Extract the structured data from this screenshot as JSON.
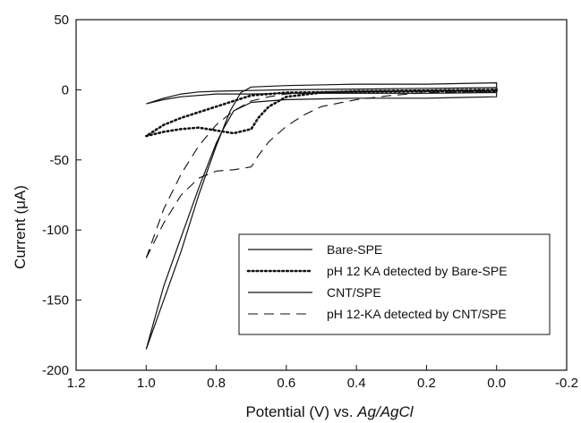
{
  "chart_data": {
    "type": "line",
    "title": "",
    "xlabel": "Potential (V) vs. ",
    "xlabel_italic": "Ag/AgCl",
    "ylabel": "Current (μA)",
    "xlim": [
      1.2,
      -0.2
    ],
    "ylim": [
      -200,
      50
    ],
    "x_reversed": true,
    "x_ticks": [
      "1.2",
      "1.0",
      "0.8",
      "0.6",
      "0.4",
      "0.2",
      "0.0",
      "-0.2"
    ],
    "y_ticks": [
      "50",
      "0",
      "-50",
      "-100",
      "-150",
      "-200"
    ],
    "grid": false,
    "legend_position": "lower-right",
    "series": [
      {
        "name": "Bare-SPE",
        "style": "solid",
        "color": "#111111",
        "x": [
          1.0,
          0.95,
          0.9,
          0.85,
          0.8,
          0.7,
          0.6,
          0.4,
          0.2,
          0.0,
          0.0,
          0.2,
          0.4,
          0.6,
          0.7,
          0.8,
          0.9,
          0.95,
          1.0
        ],
        "y": [
          -10,
          -6,
          -3,
          -1.5,
          -1,
          -0.5,
          0,
          0.5,
          1,
          1.5,
          -2,
          -2.5,
          -2.5,
          -2.5,
          -3,
          -3,
          -5,
          -7,
          -10
        ]
      },
      {
        "name": "pH 12 KA detected by Bare-SPE",
        "style": "dotted",
        "color": "#111111",
        "x": [
          1.0,
          0.95,
          0.9,
          0.85,
          0.8,
          0.75,
          0.7,
          0.68,
          0.65,
          0.6,
          0.5,
          0.4,
          0.2,
          0.0,
          0.0,
          0.2,
          0.4,
          0.6,
          0.7,
          0.75,
          0.8,
          0.85,
          0.9,
          0.95,
          1.0
        ],
        "y": [
          -33,
          -30,
          -28,
          -27,
          -29,
          -31,
          -28,
          -20,
          -12,
          -5,
          -2,
          -1,
          -0.5,
          0,
          -1,
          -1,
          -1.5,
          -2,
          -4,
          -8,
          -12,
          -16,
          -20,
          -25,
          -33
        ]
      },
      {
        "name": "CNT/SPE",
        "style": "solid",
        "color": "#111111",
        "x": [
          1.0,
          0.95,
          0.9,
          0.85,
          0.8,
          0.78,
          0.75,
          0.7,
          0.65,
          0.6,
          0.4,
          0.2,
          0.0,
          0.0,
          0.2,
          0.4,
          0.6,
          0.7,
          0.73,
          0.76,
          0.8,
          0.85,
          0.9,
          0.95,
          1.0
        ],
        "y": [
          -185,
          -140,
          -105,
          -70,
          -38,
          -28,
          -15,
          -9,
          -8,
          -7,
          -6,
          -6,
          -5,
          5,
          4,
          4,
          3,
          2,
          -2,
          -15,
          -40,
          -75,
          -115,
          -150,
          -185
        ]
      },
      {
        "name": "pH 12-KA detected by CNT/SPE",
        "style": "dashed",
        "color": "#111111",
        "x": [
          1.0,
          0.95,
          0.9,
          0.85,
          0.8,
          0.75,
          0.7,
          0.68,
          0.65,
          0.6,
          0.55,
          0.5,
          0.4,
          0.3,
          0.2,
          0.0,
          0.0,
          0.2,
          0.4,
          0.5,
          0.6,
          0.65,
          0.7,
          0.75,
          0.8,
          0.85,
          0.9,
          0.95,
          1.0
        ],
        "y": [
          -120,
          -95,
          -75,
          -63,
          -58,
          -57,
          -55,
          -47,
          -37,
          -26,
          -18,
          -12,
          -7,
          -4,
          -2,
          -1,
          0,
          -0.5,
          -1,
          -1.5,
          -3,
          -5,
          -8,
          -15,
          -25,
          -40,
          -60,
          -85,
          -120
        ]
      }
    ]
  }
}
